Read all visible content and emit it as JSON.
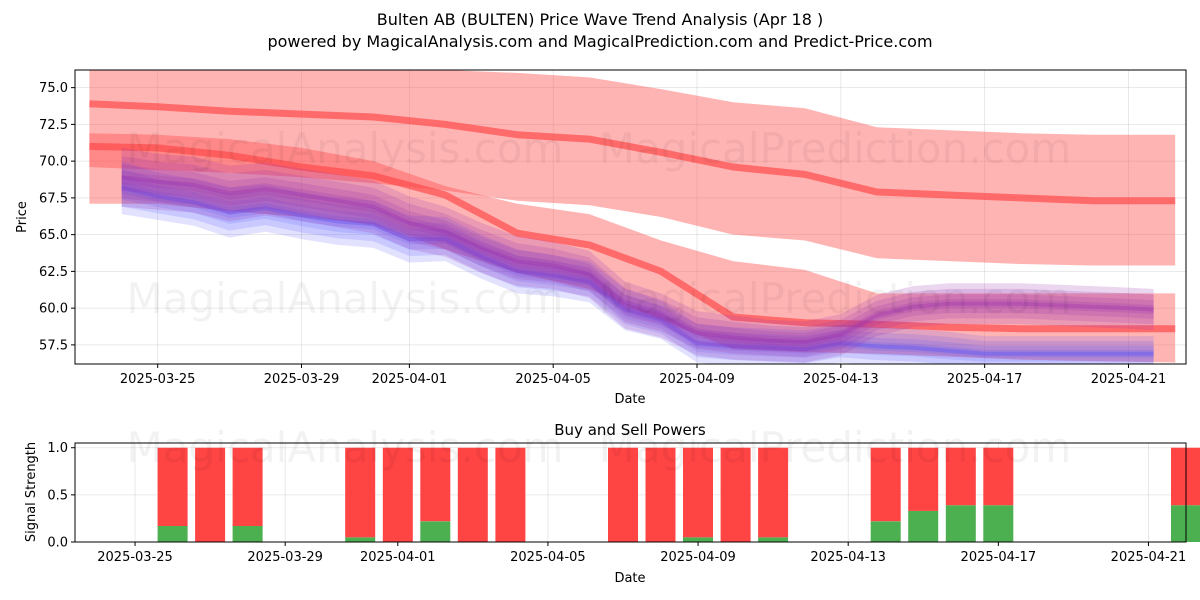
{
  "title_line1": "Bulten AB (BULTEN) Price Wave Trend Analysis (Apr 18 )",
  "title_line2": "powered by MagicalAnalysis.com and MagicalPrediction.com and Predict-Price.com",
  "watermarks": [
    "MagicalAnalysis.com",
    "MagicalPrediction.com"
  ],
  "colors": {
    "red": "#ff4c4c",
    "blue": "#4c4cff",
    "purple": "#9b30b0",
    "green": "#4caf50",
    "sellbar": "#ff4444"
  },
  "chart_data": [
    {
      "type": "area",
      "title": "",
      "xlabel": "Date",
      "ylabel": "Price",
      "ylim": [
        56.2,
        76.2
      ],
      "xlim_days": [
        -1.3,
        29.6
      ],
      "x_start_date": "2025-03-24",
      "x_ticks": [
        {
          "day": 1,
          "label": "2025-03-25"
        },
        {
          "day": 5,
          "label": "2025-03-29"
        },
        {
          "day": 8,
          "label": "2025-04-01"
        },
        {
          "day": 12,
          "label": "2025-04-05"
        },
        {
          "day": 16,
          "label": "2025-04-09"
        },
        {
          "day": 20,
          "label": "2025-04-13"
        },
        {
          "day": 24,
          "label": "2025-04-17"
        },
        {
          "day": 28,
          "label": "2025-04-21"
        }
      ],
      "y_ticks": [
        57.5,
        60.0,
        62.5,
        65.0,
        67.5,
        70.0,
        72.5,
        75.0
      ],
      "y_tick_labels": [
        "57.5",
        "60.0",
        "62.5",
        "65.0",
        "67.5",
        "70.0",
        "72.5",
        "75.0"
      ],
      "grid": true,
      "series": [
        {
          "name": "upper-trend",
          "color": "red",
          "x": [
            -0.9,
            1,
            3,
            5,
            7,
            9,
            11,
            13,
            15,
            17,
            19,
            21,
            23,
            25,
            27,
            29.3
          ],
          "center": [
            73.9,
            73.7,
            73.4,
            73.2,
            73.0,
            72.5,
            71.8,
            71.5,
            70.6,
            69.6,
            69.1,
            67.9,
            67.7,
            67.5,
            67.3,
            67.3
          ],
          "upper": [
            76.2,
            76.2,
            76.2,
            76.2,
            76.2,
            76.2,
            76.0,
            75.7,
            74.9,
            74.0,
            73.6,
            72.3,
            72.1,
            71.9,
            71.8,
            71.8
          ],
          "lower": [
            69.6,
            69.4,
            69.2,
            68.9,
            68.5,
            68.0,
            67.3,
            67.0,
            66.2,
            65.0,
            64.6,
            63.4,
            63.2,
            63.0,
            62.9,
            62.9
          ]
        },
        {
          "name": "lower-trend",
          "color": "red",
          "x": [
            -0.9,
            1,
            3,
            5,
            7,
            9,
            11,
            13,
            15,
            17,
            19,
            21,
            23,
            25,
            27,
            29.3
          ],
          "center": [
            71.0,
            70.9,
            70.4,
            69.6,
            69.0,
            67.7,
            65.1,
            64.3,
            62.5,
            59.4,
            59.0,
            58.9,
            58.7,
            58.6,
            58.6,
            58.6
          ],
          "upper": [
            71.9,
            71.8,
            71.5,
            70.9,
            70.0,
            68.3,
            67.1,
            66.4,
            64.6,
            63.2,
            62.6,
            61.0,
            61.0,
            61.0,
            61.0,
            61.0
          ],
          "lower": [
            67.1,
            67.1,
            66.6,
            66.2,
            65.7,
            64.0,
            62.4,
            61.3,
            59.2,
            57.2,
            57.0,
            56.9,
            56.7,
            56.5,
            56.4,
            56.3
          ]
        },
        {
          "name": "price-wave",
          "color": "blue",
          "x": [
            0,
            1,
            2,
            3,
            4,
            5,
            6,
            7,
            8,
            9,
            10,
            11,
            12,
            13,
            14,
            15,
            16,
            17,
            18,
            19,
            20,
            21,
            22,
            23,
            24,
            25,
            26,
            27,
            28,
            28.7
          ],
          "center": [
            68.2,
            67.6,
            67.2,
            66.5,
            66.8,
            66.3,
            65.9,
            65.7,
            64.7,
            64.7,
            63.5,
            62.5,
            62.2,
            61.8,
            59.9,
            59.2,
            57.6,
            57.4,
            57.3,
            57.2,
            57.6,
            57.4,
            57.3,
            57.1,
            56.9,
            56.9,
            56.9,
            56.9,
            56.9,
            56.9
          ],
          "spread": [
            1.8,
            1.6,
            1.6,
            1.7,
            1.6,
            1.6,
            1.6,
            1.6,
            1.6,
            1.5,
            1.5,
            1.5,
            1.4,
            1.4,
            1.4,
            1.3,
            1.3,
            1.3,
            1.3,
            1.3,
            1.3,
            1.3,
            1.3,
            1.3,
            1.2,
            1.2,
            1.2,
            1.2,
            1.2,
            1.2
          ]
        },
        {
          "name": "wave-average",
          "color": "purple",
          "x": [
            0,
            1,
            2,
            3,
            4,
            5,
            6,
            7,
            8,
            9,
            10,
            11,
            12,
            13,
            14,
            15,
            16,
            17,
            18,
            19,
            20,
            21,
            22,
            23,
            24,
            25,
            26,
            27,
            28,
            28.7
          ],
          "center": [
            68.9,
            68.6,
            68.4,
            67.8,
            68.1,
            67.7,
            67.3,
            66.9,
            65.8,
            65.2,
            64.1,
            63.2,
            62.9,
            62.3,
            60.2,
            59.5,
            58.3,
            58.0,
            57.8,
            57.7,
            58.2,
            59.5,
            60.1,
            60.3,
            60.3,
            60.3,
            60.2,
            60.1,
            60.0,
            59.9
          ],
          "spread": [
            2.0,
            1.9,
            1.9,
            1.9,
            1.8,
            1.8,
            1.8,
            1.8,
            1.8,
            1.7,
            1.7,
            1.7,
            1.6,
            1.6,
            1.6,
            1.5,
            1.5,
            1.5,
            1.4,
            1.4,
            1.4,
            1.4,
            1.4,
            1.4,
            1.4,
            1.4,
            1.4,
            1.4,
            1.4,
            1.4
          ]
        }
      ]
    },
    {
      "type": "bar",
      "title": "Buy and Sell Powers",
      "xlabel": "Date",
      "ylabel": "Signal Strength",
      "ylim": [
        0,
        1.05
      ],
      "xlim_days": [
        -0.6,
        29.0
      ],
      "x_start_date": "2025-03-24",
      "x_ticks": [
        {
          "day": 1,
          "label": "2025-03-25"
        },
        {
          "day": 5,
          "label": "2025-03-29"
        },
        {
          "day": 8,
          "label": "2025-04-01"
        },
        {
          "day": 12,
          "label": "2025-04-05"
        },
        {
          "day": 16,
          "label": "2025-04-09"
        },
        {
          "day": 20,
          "label": "2025-04-13"
        },
        {
          "day": 24,
          "label": "2025-04-17"
        },
        {
          "day": 28,
          "label": "2025-04-21"
        }
      ],
      "y_ticks": [
        0.0,
        0.5,
        1.0
      ],
      "y_tick_labels": [
        "0.0",
        "0.5",
        "1.0"
      ],
      "grid": true,
      "bars": [
        {
          "day": 2,
          "buy": 0.17,
          "sell": 0.83
        },
        {
          "day": 3,
          "buy": 0.0,
          "sell": 1.0
        },
        {
          "day": 4,
          "buy": 0.17,
          "sell": 0.83
        },
        {
          "day": 7,
          "buy": 0.05,
          "sell": 0.95
        },
        {
          "day": 8,
          "buy": 0.0,
          "sell": 1.0
        },
        {
          "day": 9,
          "buy": 0.22,
          "sell": 0.78
        },
        {
          "day": 10,
          "buy": 0.0,
          "sell": 1.0
        },
        {
          "day": 11,
          "buy": 0.0,
          "sell": 1.0
        },
        {
          "day": 14,
          "buy": 0.0,
          "sell": 1.0
        },
        {
          "day": 15,
          "buy": 0.0,
          "sell": 1.0
        },
        {
          "day": 16,
          "buy": 0.05,
          "sell": 0.95
        },
        {
          "day": 17,
          "buy": 0.0,
          "sell": 1.0
        },
        {
          "day": 18,
          "buy": 0.05,
          "sell": 0.95
        },
        {
          "day": 21,
          "buy": 0.22,
          "sell": 0.78
        },
        {
          "day": 22,
          "buy": 0.33,
          "sell": 0.67
        },
        {
          "day": 23,
          "buy": 0.39,
          "sell": 0.61
        },
        {
          "day": 24,
          "buy": 0.39,
          "sell": 0.61
        },
        {
          "day": 29,
          "buy": 0.39,
          "sell": 0.61
        }
      ]
    }
  ]
}
